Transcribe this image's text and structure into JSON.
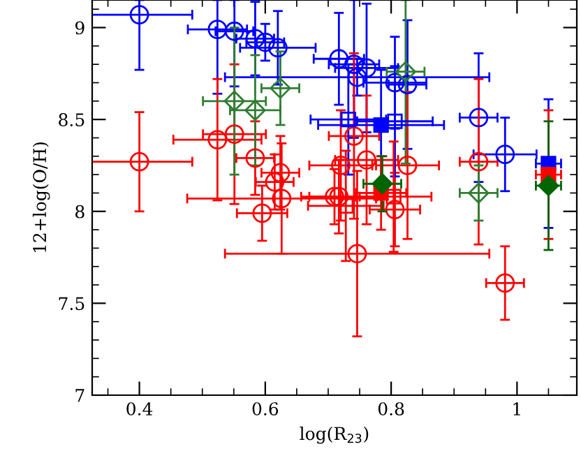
{
  "chart_data": {
    "type": "scatter",
    "xlabel": "log(R$_{23}$)",
    "ylabel": "12+log(O/H)",
    "xlim": [
      0.325,
      1.095
    ],
    "ylim": [
      7,
      9.15
    ],
    "xticks": [
      0.4,
      0.6,
      0.8,
      {
        "value": 1,
        "label": "1"
      }
    ],
    "yticks": [
      7,
      7.5,
      8,
      8.5,
      9
    ],
    "grid": false,
    "legend": false,
    "series": [
      {
        "color": "#0000ff",
        "marker": "circle",
        "x": [
          0.4,
          0.524,
          0.551,
          0.584,
          0.6,
          0.62,
          0.717,
          0.741,
          0.761,
          0.746,
          0.806,
          0.826,
          0.939,
          0.981
        ],
        "values": [
          9.07,
          8.99,
          8.98,
          8.94,
          8.92,
          8.89,
          8.83,
          8.8,
          8.78,
          8.73,
          8.7,
          8.69,
          8.51,
          8.31
        ],
        "errors": [
          [
            8.77,
            9.15
          ],
          [
            8.64,
            9.15
          ],
          [
            8.68,
            9.15
          ],
          0.2,
          0.1,
          0.2,
          0.25,
          [
            8.4,
            9.15
          ],
          0.35,
          0.1,
          0.25,
          0.35,
          0.35,
          0.2
        ],
        "xerrors": [
          0.084,
          0.047,
          0.03,
          0.03,
          0.03,
          0.06,
          0.04,
          0.04,
          0.05,
          0.21,
          0.05,
          0.03,
          0.03,
          0.05
        ]
      },
      {
        "color": "#ff0000",
        "marker": "circle",
        "x": [
          0.4,
          0.524,
          0.551,
          0.584,
          0.624,
          0.615,
          0.626,
          0.595,
          0.71,
          0.741,
          0.72,
          0.761,
          0.826,
          0.939,
          0.717,
          0.806,
          0.746,
          0.981
        ],
        "values": [
          8.27,
          8.39,
          8.42,
          8.29,
          8.21,
          8.16,
          8.07,
          7.99,
          8.08,
          8.41,
          8.25,
          8.28,
          8.25,
          8.27,
          8.08,
          8.01,
          7.77,
          7.61
        ],
        "errors": [
          0.27,
          0.33,
          0.38,
          0.2,
          0.2,
          0.15,
          0.3,
          0.15,
          0.15,
          0.45,
          0.3,
          0.35,
          0.4,
          0.45,
          0.2,
          0.2,
          0.45,
          0.2
        ],
        "xerrors": [
          0.084,
          0.07,
          0.05,
          0.03,
          0.03,
          0.03,
          0.15,
          0.04,
          0.04,
          0.04,
          0.05,
          0.05,
          0.05,
          0.03,
          0.06,
          0.04,
          0.21,
          0.03
        ]
      },
      {
        "color": "#2e7d32",
        "marker": "diamond",
        "x": [
          0.551,
          0.584,
          0.624,
          0.823,
          0.939
        ],
        "values": [
          8.6,
          8.55,
          8.67,
          8.76,
          8.1
        ],
        "errors": [
          0.4,
          0.3,
          0.2,
          [
            8.26,
            9.15
          ],
          0.15
        ],
        "xerrors": [
          0.05,
          0.04,
          0.03,
          0.03,
          0.03
        ]
      },
      {
        "color": "#0000ff",
        "marker": "square",
        "x": [
          0.732,
          0.806
        ],
        "values": [
          8.5,
          8.49
        ],
        "errors": [
          0.3,
          0.3
        ],
        "xerrors": [
          0.06,
          0.06
        ]
      },
      {
        "color": "#ff0000",
        "marker": "square",
        "x": [
          0.728,
          0.804
        ],
        "values": [
          8.03,
          8.08
        ],
        "errors": [
          0.3,
          0.3
        ],
        "xerrors": [
          0.06,
          0.06
        ]
      },
      {
        "color": "#0000ff",
        "marker": "square",
        "x": [
          0.784,
          1.05
        ],
        "values": [
          8.47,
          8.26
        ],
        "errors": [
          0.3,
          0.35
        ],
        "xerrors": [
          0.1,
          0.02
        ]
      },
      {
        "color": "#ff0000",
        "marker": "square",
        "x": [
          0.784,
          1.05
        ],
        "values": [
          8.1,
          8.2
        ],
        "errors": [
          0.2,
          0.35
        ],
        "xerrors": [
          0.04,
          0.02
        ]
      },
      {
        "color": "#006400",
        "marker": "diamond",
        "x": [
          0.786,
          1.05
        ],
        "values": [
          8.15,
          8.14
        ],
        "errors": [
          0.15,
          0.35
        ],
        "xerrors": [
          0.03,
          0.02
        ]
      }
    ]
  }
}
